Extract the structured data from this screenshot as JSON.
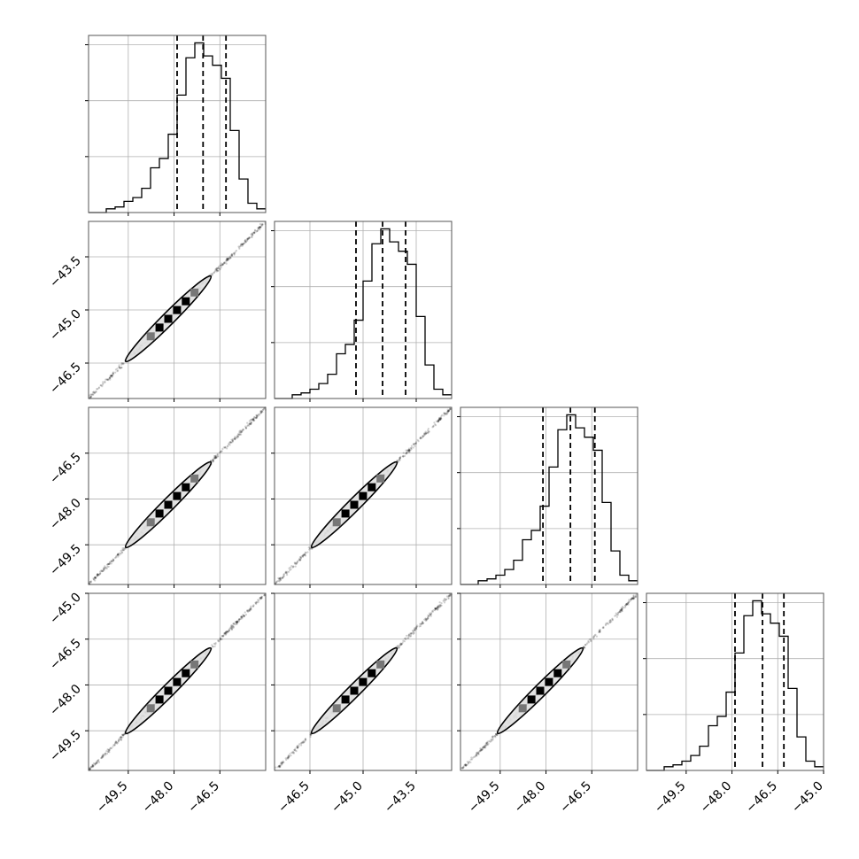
{
  "chart_data": {
    "type": "corner",
    "grid": true,
    "params": [
      {
        "range": [
          -50.8,
          -45.0
        ],
        "ticks": [
          -49.5,
          -48.0,
          -46.5
        ],
        "tick_labels": [
          "−49.5",
          "−48.0",
          "−46.5"
        ],
        "quantiles": [
          -47.9,
          -47.05,
          -46.3
        ],
        "hist": [
          0,
          0,
          0.02,
          0.03,
          0.06,
          0.08,
          0.13,
          0.24,
          0.29,
          0.42,
          0.63,
          0.83,
          0.91,
          0.84,
          0.79,
          0.72,
          0.44,
          0.18,
          0.05,
          0.02
        ]
      },
      {
        "range": [
          -47.5,
          -42.5
        ],
        "ticks": [
          -46.5,
          -45.0,
          -43.5
        ],
        "tick_labels": [
          "−46.5",
          "−45.0",
          "−43.5"
        ],
        "quantiles": [
          -45.2,
          -44.45,
          -43.8
        ],
        "hist": [
          0,
          0,
          0.02,
          0.03,
          0.05,
          0.08,
          0.13,
          0.24,
          0.29,
          0.42,
          0.63,
          0.83,
          0.91,
          0.84,
          0.79,
          0.72,
          0.44,
          0.18,
          0.05,
          0.02
        ]
      },
      {
        "range": [
          -50.8,
          -45.0
        ],
        "ticks": [
          -49.5,
          -48.0,
          -46.5
        ],
        "tick_labels": [
          "−49.5",
          "−48.0",
          "−46.5"
        ],
        "quantiles": [
          -48.1,
          -47.2,
          -46.4
        ],
        "hist": [
          0,
          0,
          0.02,
          0.03,
          0.05,
          0.08,
          0.13,
          0.24,
          0.29,
          0.42,
          0.63,
          0.83,
          0.91,
          0.84,
          0.79,
          0.72,
          0.44,
          0.18,
          0.05,
          0.02
        ]
      },
      {
        "range": [
          -50.8,
          -45.0
        ],
        "ticks": [
          -49.5,
          -48.0,
          -46.5,
          -45.0
        ],
        "tick_labels": [
          "−49.5",
          "−48.0",
          "−46.5",
          "−45.0"
        ],
        "quantiles": [
          -47.9,
          -47.0,
          -46.3
        ],
        "hist": [
          0,
          0,
          0.02,
          0.03,
          0.05,
          0.08,
          0.13,
          0.24,
          0.29,
          0.42,
          0.63,
          0.83,
          0.91,
          0.84,
          0.79,
          0.72,
          0.44,
          0.18,
          0.05,
          0.02
        ]
      }
    ],
    "left_axis": {
      "rows": [
        {
          "ticks": [],
          "tick_labels": []
        },
        {
          "ticks": [
            -43.5,
            -45.0,
            -46.5
          ],
          "tick_labels": [
            "−43.5",
            "−45.0",
            "−46.5"
          ]
        },
        {
          "ticks": [
            -46.5,
            -48.0,
            -49.5
          ],
          "tick_labels": [
            "−46.5",
            "−48.0",
            "−49.5"
          ]
        },
        {
          "ticks": [
            -45.0,
            -46.5,
            -48.0,
            -49.5
          ],
          "tick_labels": [
            "−45.0",
            "−46.5",
            "−48.0",
            "−49.5"
          ]
        }
      ]
    },
    "colors": {
      "line": "#000000",
      "grid": "#b0b0b0",
      "points": "#000000"
    }
  }
}
